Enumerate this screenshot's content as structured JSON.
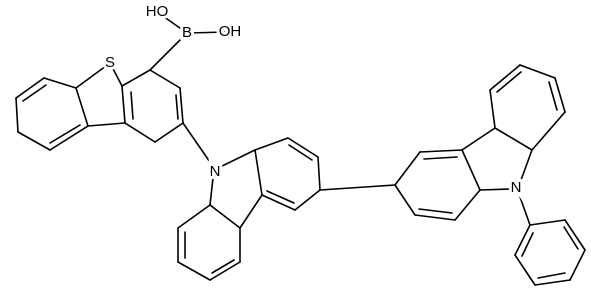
{
  "labels": {
    "ho": "HO",
    "b": "B",
    "oh": "OH",
    "s": "S",
    "n1": "N",
    "n2": "N"
  }
}
